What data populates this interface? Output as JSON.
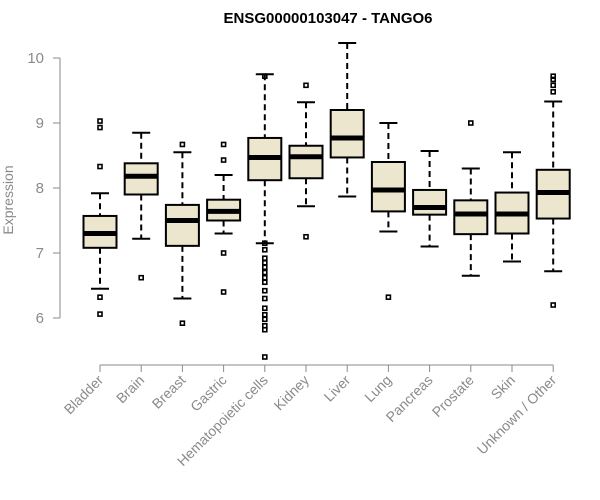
{
  "chart_data": {
    "type": "boxplot",
    "title": "ENSG00000103047 - TANGO6",
    "ylabel": "Expression",
    "xlabel": "",
    "ylim": [
      5.3,
      10.3
    ],
    "yticks": [
      6,
      7,
      8,
      9,
      10
    ],
    "box_fill": "#ede6cf",
    "categories": [
      "Bladder",
      "Brain",
      "Breast",
      "Gastric",
      "Hematopoietic cells",
      "Kidney",
      "Liver",
      "Lung",
      "Pancreas",
      "Prostate",
      "Skin",
      "Unknown / Other"
    ],
    "boxes": [
      {
        "min": 6.45,
        "q1": 7.08,
        "median": 7.3,
        "q3": 7.57,
        "max": 7.92,
        "outliers": [
          9.03,
          8.93,
          8.33,
          6.32,
          6.06
        ]
      },
      {
        "min": 7.22,
        "q1": 7.9,
        "median": 8.18,
        "q3": 8.38,
        "max": 8.85,
        "outliers": [
          6.62
        ]
      },
      {
        "min": 6.3,
        "q1": 7.11,
        "median": 7.5,
        "q3": 7.74,
        "max": 8.55,
        "outliers": [
          8.67,
          5.92
        ]
      },
      {
        "min": 7.3,
        "q1": 7.5,
        "median": 7.64,
        "q3": 7.82,
        "max": 8.2,
        "outliers": [
          8.67,
          8.43,
          7.0,
          6.4
        ]
      },
      {
        "min": 7.15,
        "q1": 8.12,
        "median": 8.47,
        "q3": 8.77,
        "max": 9.75,
        "outliers": [
          9.72,
          7.15,
          7.05,
          6.92,
          6.85,
          6.78,
          6.7,
          6.62,
          6.55,
          6.42,
          6.3,
          6.15,
          6.05,
          5.98,
          5.88,
          5.82,
          5.4
        ]
      },
      {
        "min": 7.72,
        "q1": 8.15,
        "median": 8.48,
        "q3": 8.65,
        "max": 9.32,
        "outliers": [
          9.58,
          7.25
        ]
      },
      {
        "min": 7.87,
        "q1": 8.47,
        "median": 8.77,
        "q3": 9.2,
        "max": 10.23,
        "outliers": []
      },
      {
        "min": 7.33,
        "q1": 7.64,
        "median": 7.97,
        "q3": 8.4,
        "max": 9.0,
        "outliers": [
          6.32
        ]
      },
      {
        "min": 7.1,
        "q1": 7.59,
        "median": 7.7,
        "q3": 7.97,
        "max": 8.57,
        "outliers": []
      },
      {
        "min": 6.65,
        "q1": 7.29,
        "median": 7.6,
        "q3": 7.81,
        "max": 8.3,
        "outliers": [
          9.0
        ]
      },
      {
        "min": 6.87,
        "q1": 7.3,
        "median": 7.6,
        "q3": 7.93,
        "max": 8.55,
        "outliers": []
      },
      {
        "min": 6.72,
        "q1": 7.53,
        "median": 7.93,
        "q3": 8.28,
        "max": 9.33,
        "outliers": [
          9.72,
          9.67,
          9.58,
          9.48,
          6.2
        ]
      }
    ]
  }
}
